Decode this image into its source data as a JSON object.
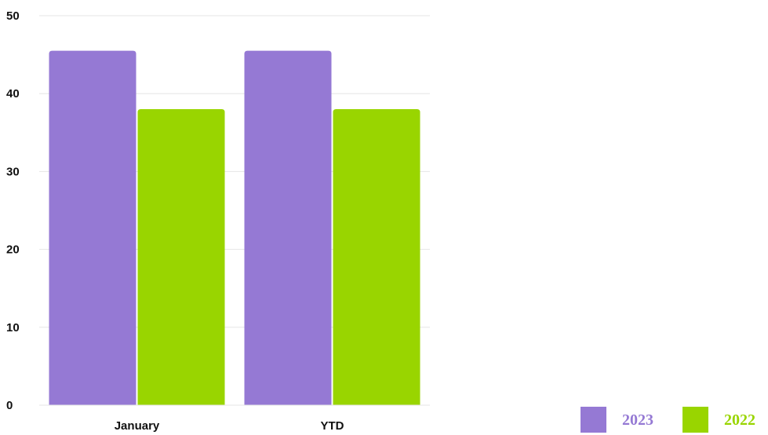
{
  "chart_data": {
    "type": "bar",
    "categories": [
      "January",
      "YTD"
    ],
    "series": [
      {
        "name": "2023",
        "values": [
          45.5,
          45.5
        ],
        "color": "#9579d4"
      },
      {
        "name": "2022",
        "values": [
          38,
          38
        ],
        "color": "#99d500"
      }
    ],
    "y_ticks": [
      "0",
      "10",
      "20",
      "30",
      "40",
      "50"
    ],
    "ylim": [
      0,
      50
    ],
    "grid": true,
    "legend_position": "bottom-right",
    "title": "",
    "xlabel": "",
    "ylabel": ""
  }
}
